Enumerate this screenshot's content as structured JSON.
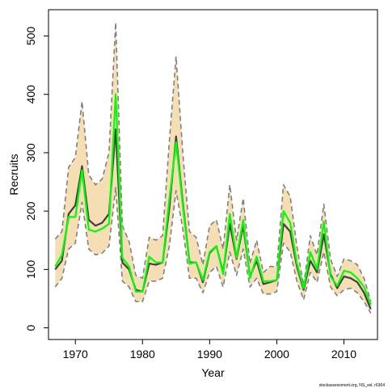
{
  "chart_data": {
    "type": "line",
    "xlabel": "Year",
    "ylabel": "Recruits",
    "xlim": [
      1966,
      2015
    ],
    "ylim": [
      -20,
      545
    ],
    "x_ticks": [
      "1970",
      "1980",
      "1990",
      "2000",
      "2010"
    ],
    "y_ticks": [
      "0",
      "100",
      "200",
      "300",
      "400",
      "500"
    ],
    "grid": false,
    "x": [
      1967,
      1968,
      1969,
      1970,
      1971,
      1972,
      1973,
      1974,
      1975,
      1976,
      1977,
      1978,
      1979,
      1980,
      1981,
      1982,
      1983,
      1984,
      1985,
      1986,
      1987,
      1988,
      1989,
      1990,
      1991,
      1992,
      1993,
      1994,
      1995,
      1996,
      1997,
      1998,
      1999,
      2000,
      2001,
      2002,
      2003,
      2004,
      2005,
      2006,
      2007,
      2008,
      2009,
      2010,
      2011,
      2012,
      2013,
      2014
    ],
    "series": [
      {
        "role": "upper-bound",
        "color": "#808080",
        "values": [
          152,
          165,
          275,
          292,
          388,
          262,
          245,
          255,
          300,
          523,
          175,
          148,
          90,
          85,
          155,
          150,
          158,
          320,
          465,
          300,
          165,
          155,
          108,
          175,
          185,
          135,
          245,
          150,
          222,
          110,
          150,
          95,
          105,
          105,
          245,
          225,
          140,
          72,
          158,
          125,
          212,
          118,
          88,
          118,
          115,
          108,
          85,
          45
        ]
      },
      {
        "role": "lower-bound",
        "color": "#808080",
        "values": [
          70,
          85,
          135,
          145,
          215,
          135,
          125,
          128,
          140,
          240,
          80,
          70,
          45,
          45,
          80,
          80,
          85,
          140,
          235,
          170,
          85,
          85,
          60,
          95,
          105,
          70,
          130,
          90,
          135,
          70,
          85,
          58,
          58,
          62,
          145,
          130,
          80,
          48,
          95,
          78,
          130,
          70,
          55,
          65,
          68,
          60,
          45,
          25
        ]
      },
      {
        "role": "estimate",
        "color": "#404040",
        "values": [
          100,
          115,
          195,
          210,
          277,
          185,
          175,
          180,
          195,
          340,
          112,
          100,
          65,
          62,
          110,
          108,
          112,
          205,
          328,
          215,
          112,
          112,
          78,
          128,
          140,
          95,
          178,
          118,
          175,
          88,
          115,
          75,
          78,
          82,
          178,
          165,
          105,
          65,
          115,
          95,
          160,
          92,
          68,
          88,
          85,
          78,
          60,
          32
        ]
      },
      {
        "role": "alternative-estimate",
        "color": "#00ff00",
        "values": [
          105,
          125,
          190,
          190,
          270,
          168,
          165,
          170,
          178,
          400,
          120,
          105,
          62,
          62,
          122,
          112,
          112,
          220,
          318,
          210,
          110,
          112,
          82,
          130,
          140,
          92,
          195,
          120,
          185,
          85,
          122,
          80,
          80,
          82,
          200,
          180,
          110,
          68,
          130,
          100,
          182,
          88,
          72,
          98,
          95,
          85,
          70,
          40
        ]
      }
    ],
    "credit": "stockassessment.org, NS_sel, r6364"
  }
}
